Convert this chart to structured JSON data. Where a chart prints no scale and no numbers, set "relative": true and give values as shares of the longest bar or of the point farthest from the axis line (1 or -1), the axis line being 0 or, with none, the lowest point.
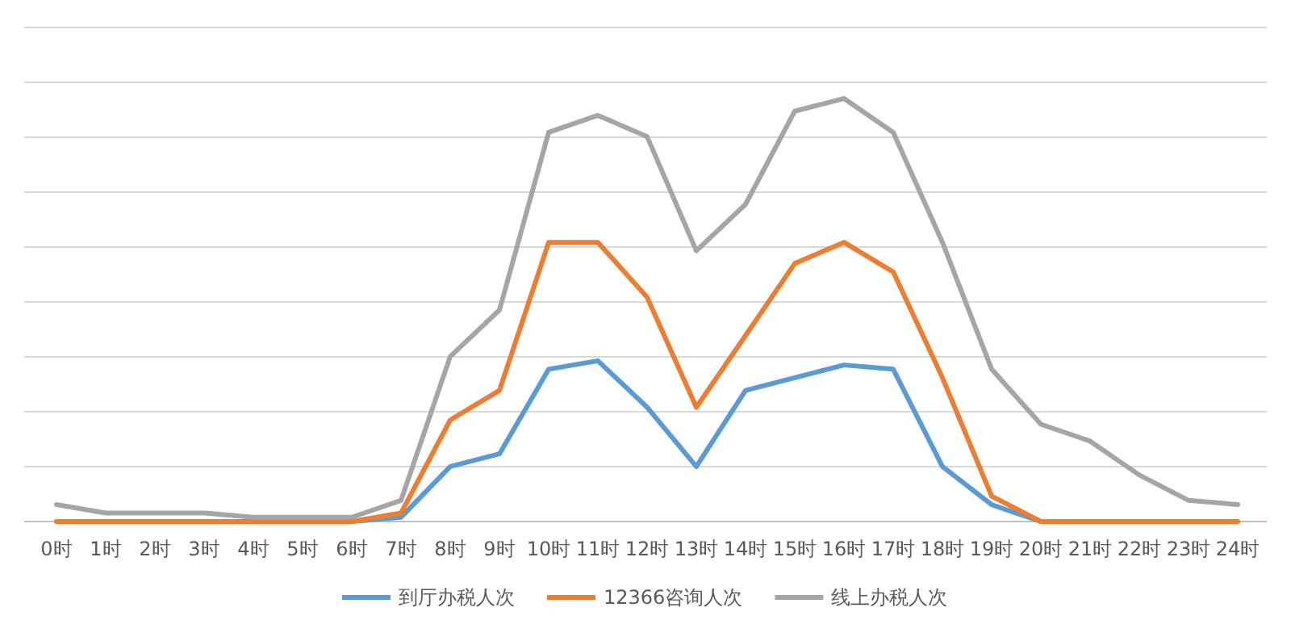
{
  "chart_data": {
    "type": "line",
    "relative": true,
    "grid": "y",
    "legend": "bottom",
    "marker": "none",
    "line_style": "solid",
    "categories": [
      "0时",
      "1时",
      "2时",
      "3时",
      "4时",
      "5时",
      "6时",
      "7时",
      "8时",
      "9时",
      "10时",
      "11时",
      "12时",
      "13时",
      "14时",
      "15时",
      "16时",
      "17时",
      "18时",
      "19时",
      "20时",
      "21时",
      "22时",
      "23时",
      "24时"
    ],
    "series": [
      {
        "name": "到厅办税人次",
        "color": "#5b9bd5",
        "values": [
          null,
          null,
          null,
          null,
          null,
          0,
          0,
          0.01,
          0.13,
          0.16,
          0.36,
          0.38,
          0.27,
          0.13,
          0.31,
          0.34,
          0.37,
          0.36,
          0.13,
          0.04,
          0,
          0,
          null,
          null,
          null
        ]
      },
      {
        "name": "12366咨询人次",
        "color": "#ed7d31",
        "values": [
          0,
          0,
          0,
          0,
          0,
          0,
          0,
          0.02,
          0.24,
          0.31,
          0.66,
          0.66,
          0.53,
          0.27,
          0.44,
          0.61,
          0.66,
          0.59,
          0.34,
          0.06,
          0,
          0,
          0,
          0,
          0
        ]
      },
      {
        "name": "线上办税人次",
        "color": "#a5a5a5",
        "values": [
          0.04,
          0.02,
          0.02,
          0.02,
          0.01,
          0.01,
          0.01,
          0.05,
          0.39,
          0.5,
          0.92,
          0.96,
          0.91,
          0.64,
          0.75,
          0.97,
          1,
          0.92,
          0.66,
          0.36,
          0.23,
          0.19,
          0.11,
          0.05,
          0.04
        ]
      }
    ]
  }
}
